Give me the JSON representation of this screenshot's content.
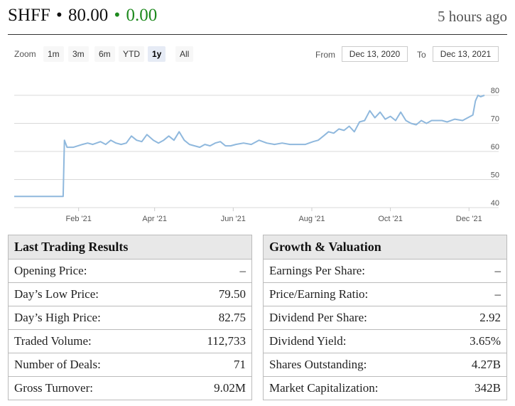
{
  "header": {
    "symbol": "SHFF",
    "separator": "•",
    "price": "80.00",
    "change_separator": "•",
    "change": "0.00",
    "updated": "5 hours ago"
  },
  "zoom": {
    "label": "Zoom",
    "buttons": [
      "1m",
      "3m",
      "6m",
      "YTD",
      "1y",
      "All"
    ],
    "active": "1y"
  },
  "range": {
    "from_label": "From",
    "from_value": "Dec 13, 2020",
    "to_label": "To",
    "to_value": "Dec 13, 2021"
  },
  "colors": {
    "line": "#8fb8dd",
    "change_positive": "#1e8a1e",
    "grid": "#d9d9d9"
  },
  "chart_data": {
    "type": "line",
    "x_ticks": [
      "Feb '21",
      "Apr '21",
      "Jun '21",
      "Aug '21",
      "Oct '21",
      "Dec '21"
    ],
    "y_ticks": [
      40,
      50,
      60,
      70,
      80
    ],
    "ylim": [
      40,
      80
    ],
    "grid": true,
    "series": [
      {
        "x": [
          "2020-12-13",
          "2021-01-16",
          "2021-01-20",
          "2021-01-21",
          "2021-01-23",
          "2021-01-28",
          "2021-02-04",
          "2021-02-08",
          "2021-02-12",
          "2021-02-18",
          "2021-02-22",
          "2021-02-26",
          "2021-03-02",
          "2021-03-06",
          "2021-03-10",
          "2021-03-14",
          "2021-03-18",
          "2021-03-22",
          "2021-03-26",
          "2021-03-31",
          "2021-04-04",
          "2021-04-08",
          "2021-04-12",
          "2021-04-16",
          "2021-04-20",
          "2021-04-24",
          "2021-04-28",
          "2021-05-02",
          "2021-05-06",
          "2021-05-10",
          "2021-05-14",
          "2021-05-18",
          "2021-05-22",
          "2021-05-26",
          "2021-05-30",
          "2021-06-03",
          "2021-06-09",
          "2021-06-15",
          "2021-06-21",
          "2021-06-27",
          "2021-07-03",
          "2021-07-09",
          "2021-07-15",
          "2021-07-21",
          "2021-07-27",
          "2021-08-02",
          "2021-08-06",
          "2021-08-10",
          "2021-08-14",
          "2021-08-18",
          "2021-08-22",
          "2021-08-26",
          "2021-08-30",
          "2021-09-03",
          "2021-09-07",
          "2021-09-11",
          "2021-09-15",
          "2021-09-19",
          "2021-09-23",
          "2021-09-27",
          "2021-10-01",
          "2021-10-05",
          "2021-10-09",
          "2021-10-13",
          "2021-10-17",
          "2021-10-21",
          "2021-10-25",
          "2021-10-29",
          "2021-11-02",
          "2021-11-06",
          "2021-11-10",
          "2021-11-14",
          "2021-11-20",
          "2021-11-26",
          "2021-11-30",
          "2021-12-04",
          "2021-12-06",
          "2021-12-08",
          "2021-12-10",
          "2021-12-13"
        ],
        "y": [
          44,
          44,
          44,
          64,
          61.5,
          61.5,
          62.5,
          63,
          62.5,
          63.5,
          62.5,
          64,
          63,
          62.5,
          63,
          65.5,
          64,
          63.5,
          66,
          64,
          63,
          64,
          65.5,
          64,
          67,
          64,
          62.5,
          62,
          61.5,
          62.5,
          62,
          63,
          63.5,
          62,
          62,
          62.5,
          63,
          62.5,
          64,
          63,
          62.5,
          63,
          62.5,
          62.5,
          62.5,
          63.5,
          64,
          65.5,
          67,
          66.5,
          68,
          67.5,
          69,
          67,
          70.5,
          71,
          74.5,
          72,
          74,
          71.5,
          72.5,
          71,
          74,
          71,
          70,
          69.5,
          71,
          70,
          71,
          71,
          71,
          70.5,
          71.5,
          71,
          72,
          73,
          78,
          80,
          79.5,
          80
        ]
      }
    ]
  },
  "trading": {
    "title": "Last Trading Results",
    "rows": [
      {
        "label": "Opening Price:",
        "value": "–"
      },
      {
        "label": "Day’s Low Price:",
        "value": "79.50"
      },
      {
        "label": "Day’s High Price:",
        "value": "82.75"
      },
      {
        "label": "Traded Volume:",
        "value": "112,733"
      },
      {
        "label": "Number of Deals:",
        "value": "71"
      },
      {
        "label": "Gross Turnover:",
        "value": "9.02M"
      }
    ]
  },
  "valuation": {
    "title": "Growth & Valuation",
    "rows": [
      {
        "label": "Earnings Per Share:",
        "value": "–"
      },
      {
        "label": "Price/Earning Ratio:",
        "value": "–"
      },
      {
        "label": "Dividend Per Share:",
        "value": "2.92"
      },
      {
        "label": "Dividend Yield:",
        "value": "3.65%"
      },
      {
        "label": "Shares Outstanding:",
        "value": "4.27B"
      },
      {
        "label": "Market Capitalization:",
        "value": "342B"
      }
    ]
  }
}
